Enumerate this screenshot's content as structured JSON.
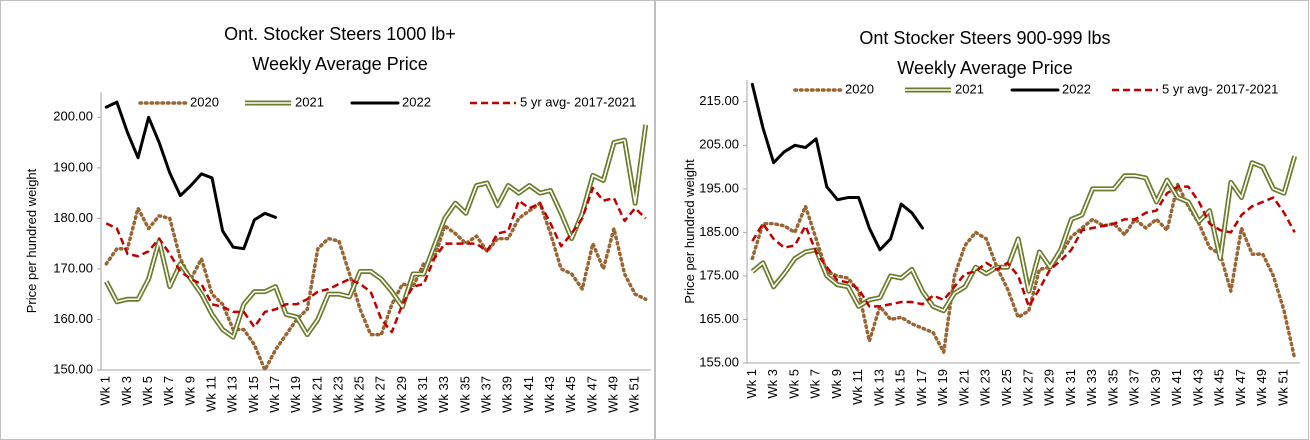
{
  "chart_data": [
    {
      "type": "line",
      "title": "Ont. Stocker Steers 1000 lb+",
      "subtitle": "Weekly Average Price",
      "y_label": "Price per hundred weight",
      "grid": false,
      "legend": "top",
      "categories": [
        "Wk 1",
        null,
        "Wk 3",
        null,
        "Wk 5",
        null,
        "Wk 7",
        null,
        "Wk 9",
        null,
        "Wk 11",
        null,
        "Wk 13",
        null,
        "Wk 15",
        null,
        "Wk 17",
        null,
        "Wk 19",
        null,
        "Wk 21",
        null,
        "Wk 23",
        null,
        "Wk 25",
        null,
        "Wk 27",
        null,
        "Wk 29",
        null,
        "Wk 31",
        null,
        "Wk 33",
        null,
        "Wk 35",
        null,
        "Wk 37",
        null,
        "Wk 39",
        null,
        "Wk 41",
        null,
        "Wk 43",
        null,
        "Wk 45",
        null,
        "Wk 47",
        null,
        "Wk 49",
        null,
        "Wk 51",
        null
      ],
      "ylim": [
        150,
        205
      ],
      "yticks": [
        {
          "value": 150,
          "label": "150.00"
        },
        {
          "value": 160,
          "label": "160.00"
        },
        {
          "value": 170,
          "label": "170.00"
        },
        {
          "value": 180,
          "label": "180.00"
        },
        {
          "value": 190,
          "label": "190.00"
        },
        {
          "value": 200,
          "label": "200.00"
        }
      ],
      "series": [
        {
          "name": "2020",
          "color": "#996633",
          "style": "dotted",
          "values": [
            171,
            174,
            174,
            182,
            178,
            180.5,
            180,
            172,
            168,
            172,
            165,
            163,
            158,
            158,
            155,
            150,
            154,
            157,
            160,
            162,
            174,
            176,
            175.5,
            169,
            162,
            157,
            157,
            163,
            167,
            166.5,
            171,
            172,
            178.5,
            177,
            175,
            176.5,
            173.5,
            176,
            176,
            180,
            181.5,
            183,
            177,
            170,
            169,
            166,
            175,
            170,
            178,
            169,
            165,
            164
          ]
        },
        {
          "name": "2021",
          "color": "#6b7d2a",
          "style": "double",
          "values": [
            167.5,
            163.5,
            164,
            164,
            168,
            175.5,
            166.5,
            171,
            168,
            165,
            161,
            158,
            156.5,
            163,
            165.5,
            165.5,
            166.5,
            161,
            160.5,
            157,
            160,
            165,
            165,
            164.5,
            169.5,
            169.5,
            168,
            165.5,
            162.5,
            169,
            169,
            174.5,
            180,
            183,
            181,
            186.5,
            187,
            182.5,
            186.5,
            185,
            186.5,
            185,
            185.5,
            181,
            176,
            181,
            188.5,
            187.5,
            195,
            195.5,
            183,
            198.5
          ]
        },
        {
          "name": "2022",
          "color": "#000000",
          "style": "solid",
          "values": [
            202,
            203,
            197,
            192,
            200,
            195,
            189,
            184.5,
            186.5,
            188.8,
            188,
            177.5,
            174.3,
            174,
            179.7,
            181,
            180.2,
            null,
            null,
            null,
            null,
            null,
            null,
            null,
            null,
            null,
            null,
            null,
            null,
            null,
            null,
            null,
            null,
            null,
            null,
            null,
            null,
            null,
            null,
            null,
            null,
            null,
            null,
            null,
            null,
            null,
            null,
            null,
            null,
            null,
            null,
            null
          ]
        },
        {
          "name": "5 yr avg- 2017-2021",
          "color": "#c00000",
          "style": "dashed",
          "values": [
            179,
            178,
            173,
            172.5,
            173.5,
            176,
            173,
            169.5,
            168,
            167,
            163,
            162.5,
            161.5,
            161.5,
            158.5,
            161.5,
            162,
            163,
            163,
            164,
            165.5,
            166,
            167,
            168,
            167,
            165.5,
            160,
            157.5,
            163,
            166.5,
            167,
            172,
            175,
            175,
            175,
            175,
            173.5,
            177,
            177.5,
            183.5,
            182,
            183,
            179,
            174.5,
            177,
            180,
            186,
            183.5,
            184,
            179.5,
            182,
            180
          ]
        }
      ]
    },
    {
      "type": "line",
      "title": "Ont Stocker Steers 900-999 lbs",
      "subtitle": "Weekly Average Price",
      "y_label": "Price per hundred weight",
      "grid": false,
      "legend": "top",
      "categories": [
        "Wk 1",
        null,
        "Wk 3",
        null,
        "Wk 5",
        null,
        "Wk 7",
        null,
        "Wk 9",
        null,
        "Wk 11",
        null,
        "Wk 13",
        null,
        "Wk 15",
        null,
        "Wk 17",
        null,
        "Wk 19",
        null,
        "Wk 21",
        null,
        "Wk 23",
        null,
        "Wk 25",
        null,
        "Wk 27",
        null,
        "Wk 29",
        null,
        "Wk 31",
        null,
        "Wk 33",
        null,
        "Wk 35",
        null,
        "Wk 37",
        null,
        "Wk 39",
        null,
        "Wk 41",
        null,
        "Wk 43",
        null,
        "Wk 45",
        null,
        "Wk 47",
        null,
        "Wk 49",
        null,
        "Wk 51",
        null
      ],
      "ylim": [
        155,
        220
      ],
      "yticks": [
        {
          "value": 155,
          "label": "155.00"
        },
        {
          "value": 165,
          "label": "165.00"
        },
        {
          "value": 175,
          "label": "175.00"
        },
        {
          "value": 185,
          "label": "185.00"
        },
        {
          "value": 195,
          "label": "195.00"
        },
        {
          "value": 205,
          "label": "205.00"
        },
        {
          "value": 215,
          "label": "215.00"
        }
      ],
      "series": [
        {
          "name": "2020",
          "color": "#996633",
          "style": "dotted",
          "values": [
            179,
            187,
            187,
            186.5,
            185,
            191,
            183.5,
            176,
            175,
            174.5,
            171.5,
            160,
            168,
            165,
            165.5,
            164,
            163,
            162,
            157.5,
            175,
            182,
            185,
            183.5,
            177,
            172,
            165.5,
            167,
            176.5,
            177,
            180,
            184,
            186,
            188,
            186.5,
            187,
            184.5,
            188,
            186,
            188,
            185.5,
            196,
            191,
            187,
            181.5,
            180,
            171.5,
            186,
            180,
            180,
            175,
            167,
            156
          ]
        },
        {
          "name": "2021",
          "color": "#6b7d2a",
          "style": "double",
          "values": [
            176,
            178,
            172.5,
            175.5,
            179,
            180.5,
            181,
            175,
            173,
            172.5,
            168,
            169.5,
            170,
            175,
            174.5,
            176.5,
            171.5,
            168,
            167,
            171,
            172.5,
            177,
            175.5,
            177,
            177,
            183.5,
            171.5,
            180.5,
            177,
            181,
            188,
            189,
            195,
            195,
            195,
            198,
            198,
            197.5,
            192,
            197,
            193,
            192,
            187.5,
            190,
            179,
            196.5,
            193,
            201,
            200,
            195,
            194,
            202.5
          ]
        },
        {
          "name": "2022",
          "color": "#000000",
          "style": "solid",
          "values": [
            219,
            209,
            201,
            203.5,
            205,
            204.5,
            206.5,
            195.5,
            192.5,
            193,
            193,
            186,
            181,
            183.5,
            191.5,
            189.5,
            186,
            null,
            null,
            null,
            null,
            null,
            null,
            null,
            null,
            null,
            null,
            null,
            null,
            null,
            null,
            null,
            null,
            null,
            null,
            null,
            null,
            null,
            null,
            null,
            null,
            null,
            null,
            null,
            null,
            null,
            null,
            null,
            null,
            null,
            null,
            null
          ]
        },
        {
          "name": "5 yr avg- 2017-2021",
          "color": "#c00000",
          "style": "dashed",
          "values": [
            183,
            187,
            183.5,
            181.5,
            182,
            186.5,
            180.5,
            177,
            174,
            173.5,
            172,
            168,
            168,
            168.5,
            169,
            169,
            168.5,
            170.5,
            169.5,
            172.5,
            175.5,
            176,
            178,
            176.5,
            178,
            175,
            168,
            172,
            176.5,
            178.5,
            181,
            185.5,
            186,
            186.5,
            187,
            188,
            188,
            189.5,
            190,
            194,
            195.5,
            195.5,
            192,
            187,
            185.5,
            185,
            189,
            191,
            192,
            193,
            189.5,
            185
          ]
        }
      ]
    }
  ]
}
